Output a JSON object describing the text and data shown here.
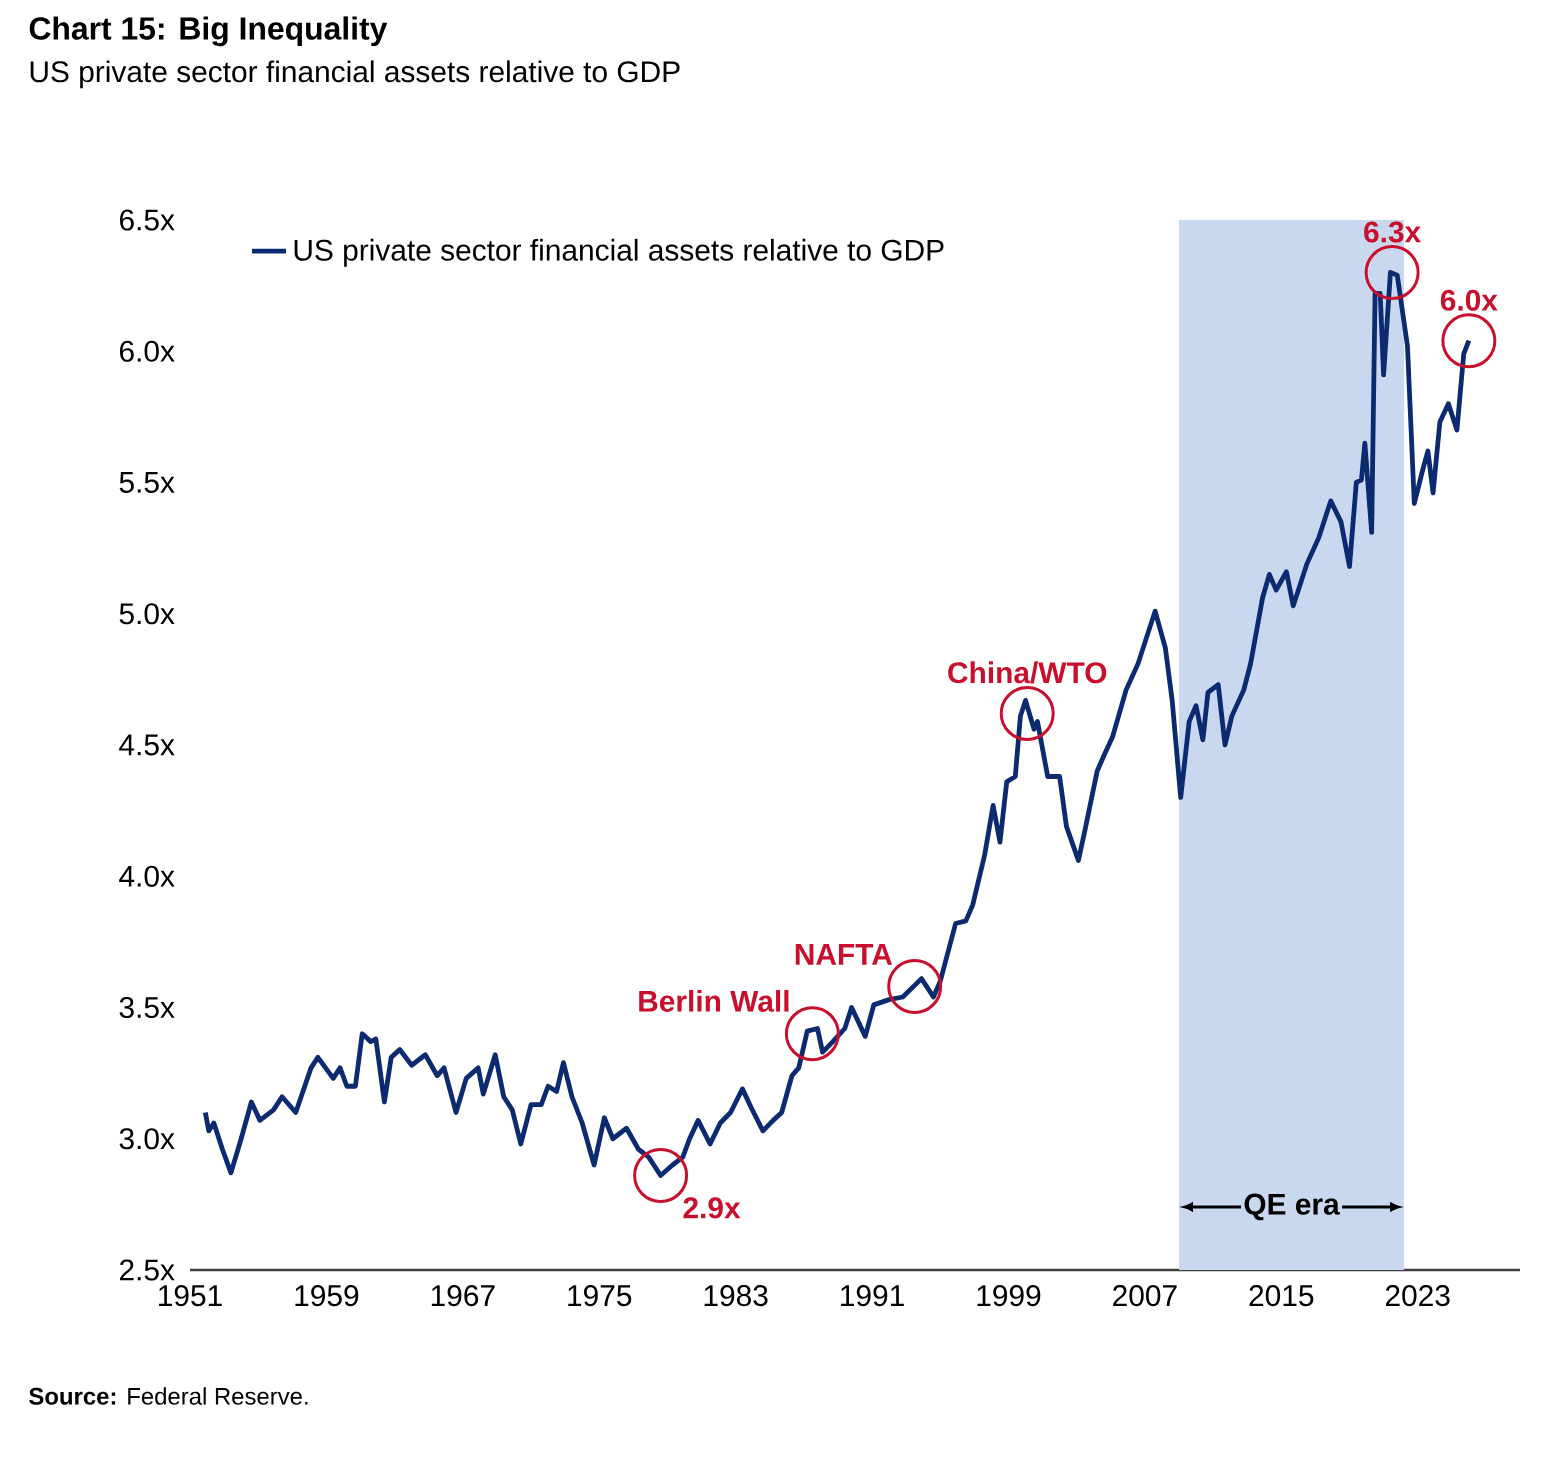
{
  "chart_data": {
    "type": "line",
    "title": "Chart 15: Big Inequality",
    "subtitle": "US private sector financial assets relative to GDP",
    "x": [
      1951.9,
      1952.1,
      1952.4,
      1952.9,
      1953.4,
      1954.0,
      1954.6,
      1955.1,
      1955.9,
      1956.4,
      1957.2,
      1958.1,
      1958.5,
      1959.4,
      1959.8,
      1960.2,
      1960.7,
      1961.1,
      1961.6,
      1961.9,
      1962.4,
      1962.8,
      1963.3,
      1964.0,
      1964.8,
      1965.5,
      1965.9,
      1966.6,
      1967.2,
      1967.9,
      1968.2,
      1968.9,
      1969.4,
      1969.9,
      1970.4,
      1971.0,
      1971.6,
      1972.0,
      1972.5,
      1972.9,
      1973.4,
      1974.0,
      1974.7,
      1975.3,
      1975.8,
      1976.6,
      1977.3,
      1977.9,
      1978.6,
      1979.3,
      1979.9,
      1980.3,
      1980.8,
      1981.5,
      1982.1,
      1982.7,
      1983.4,
      1983.9,
      1984.6,
      1985.2,
      1985.7,
      1986.3,
      1986.7,
      1987.2,
      1987.8,
      1988.1,
      1988.7,
      1989.4,
      1989.8,
      1990.6,
      1991.1,
      1992.0,
      1992.8,
      1993.9,
      1994.6,
      1995.0,
      1995.9,
      1996.5,
      1996.9,
      1997.6,
      1998.1,
      1998.5,
      1998.9,
      1999.4,
      1999.7,
      2000.0,
      2000.5,
      2000.7,
      2001.3,
      2002.0,
      2002.4,
      2003.1,
      2003.5,
      2004.2,
      2004.6,
      2005.1,
      2005.9,
      2006.6,
      2007.6,
      2008.2,
      2008.6,
      2009.1,
      2009.6,
      2010.0,
      2010.4,
      2010.7,
      2011.3,
      2011.7,
      2012.1,
      2012.8,
      2013.2,
      2013.9,
      2014.3,
      2014.7,
      2015.3,
      2015.7,
      2016.5,
      2017.2,
      2017.9,
      2018.5,
      2019.0,
      2019.4,
      2019.7,
      2019.9,
      2020.3,
      2020.5,
      2020.8,
      2021.0,
      2021.4,
      2021.8,
      2022.4,
      2022.8,
      2023.3,
      2023.6,
      2023.9,
      2024.3,
      2024.8,
      2025.3,
      2025.7,
      2026.0
    ],
    "series": [
      {
        "name": "US private sector financial assets relative to GDP",
        "color": "#0b2a6f",
        "values": [
          3.1,
          3.03,
          3.06,
          2.96,
          2.87,
          3.0,
          3.14,
          3.07,
          3.11,
          3.16,
          3.1,
          3.27,
          3.31,
          3.23,
          3.27,
          3.2,
          3.2,
          3.4,
          3.37,
          3.38,
          3.14,
          3.31,
          3.34,
          3.28,
          3.32,
          3.24,
          3.27,
          3.1,
          3.23,
          3.27,
          3.17,
          3.32,
          3.16,
          3.11,
          2.98,
          3.13,
          3.13,
          3.2,
          3.18,
          3.29,
          3.16,
          3.06,
          2.9,
          3.08,
          3.0,
          3.04,
          2.96,
          2.93,
          2.86,
          2.9,
          2.93,
          3.0,
          3.07,
          2.98,
          3.06,
          3.1,
          3.19,
          3.12,
          3.03,
          3.07,
          3.1,
          3.24,
          3.27,
          3.41,
          3.42,
          3.33,
          3.37,
          3.42,
          3.5,
          3.39,
          3.51,
          3.53,
          3.54,
          3.61,
          3.54,
          3.6,
          3.82,
          3.83,
          3.89,
          4.08,
          4.27,
          4.13,
          4.36,
          4.38,
          4.61,
          4.67,
          4.56,
          4.59,
          4.38,
          4.38,
          4.19,
          4.06,
          4.18,
          4.4,
          4.46,
          4.53,
          4.71,
          4.81,
          5.01,
          4.87,
          4.67,
          4.3,
          4.59,
          4.65,
          4.52,
          4.7,
          4.73,
          4.5,
          4.61,
          4.71,
          4.81,
          5.06,
          5.15,
          5.09,
          5.16,
          5.03,
          5.19,
          5.29,
          5.43,
          5.35,
          5.18,
          5.5,
          5.51,
          5.65,
          5.31,
          6.22,
          6.22,
          5.91,
          6.3,
          6.29,
          6.02,
          5.42,
          5.55,
          5.62,
          5.46,
          5.73,
          5.8,
          5.7,
          5.99,
          6.04
        ]
      }
    ],
    "xlim": [
      1951,
      2029
    ],
    "xticks": [
      1951,
      1959,
      1967,
      1975,
      1983,
      1991,
      1999,
      2007,
      2015,
      2023
    ],
    "ylim": [
      2.5,
      6.5
    ],
    "yticks": [
      {
        "value": 2.5,
        "label": "2.5x"
      },
      {
        "value": 3.0,
        "label": "3.0x"
      },
      {
        "value": 3.5,
        "label": "3.5x"
      },
      {
        "value": 4.0,
        "label": "4.0x"
      },
      {
        "value": 4.5,
        "label": "4.5x"
      },
      {
        "value": 5.0,
        "label": "5.0x"
      },
      {
        "value": 5.5,
        "label": "5.5x"
      },
      {
        "value": 6.0,
        "label": "6.0x"
      },
      {
        "value": 6.5,
        "label": "6.5x"
      }
    ],
    "bands": [
      {
        "axis": "x",
        "from": 2009.0,
        "to": 2022.2,
        "label": "QE era",
        "color": "#c9d8ee"
      }
    ],
    "annotations": [
      {
        "text": "2.9x",
        "x": 1978.6,
        "y": 2.86
      },
      {
        "text": "Berlin Wall",
        "x": 1987.5,
        "y": 3.4
      },
      {
        "text": "NAFTA",
        "x": 1993.5,
        "y": 3.58
      },
      {
        "text": "China/WTO",
        "x": 2000.1,
        "y": 4.62
      },
      {
        "text": "6.3x",
        "x": 2021.5,
        "y": 6.3
      },
      {
        "text": "6.0x",
        "x": 2026.0,
        "y": 6.04
      },
      "**Source:** Federal Reserve."
    ],
    "legend": "top left",
    "grid": false
  }
}
